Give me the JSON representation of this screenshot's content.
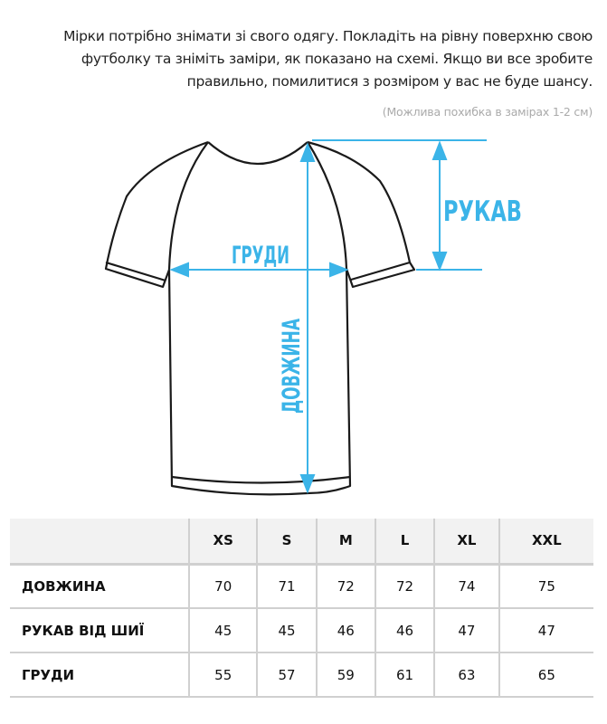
{
  "intro": "Мірки потрібно знімати зі свого одягу. Покладіть на рівну поверхню свою футболку та зніміть заміри, як показано на схемі. Якщо ви все зробите правильно, помилитися з розміром у вас не буде шансу.",
  "note": "(Можлива похибка в замірах 1-2 см)",
  "diagram": {
    "accent_color": "#3bb4e8",
    "sleeve_label": "РУКАВ",
    "chest_label": "ГРУДИ",
    "length_label": "ДОВЖИНА"
  },
  "table": {
    "sizes": [
      "XS",
      "S",
      "M",
      "L",
      "XL",
      "XXL"
    ],
    "rows": [
      {
        "label": "ДОВЖИНА",
        "values": [
          "70",
          "71",
          "72",
          "72",
          "74",
          "75"
        ]
      },
      {
        "label": "РУКАВ ВІД ШИЇ",
        "values": [
          "45",
          "45",
          "46",
          "46",
          "47",
          "47"
        ]
      },
      {
        "label": "ГРУДИ",
        "values": [
          "55",
          "57",
          "59",
          "61",
          "63",
          "65"
        ]
      }
    ]
  }
}
